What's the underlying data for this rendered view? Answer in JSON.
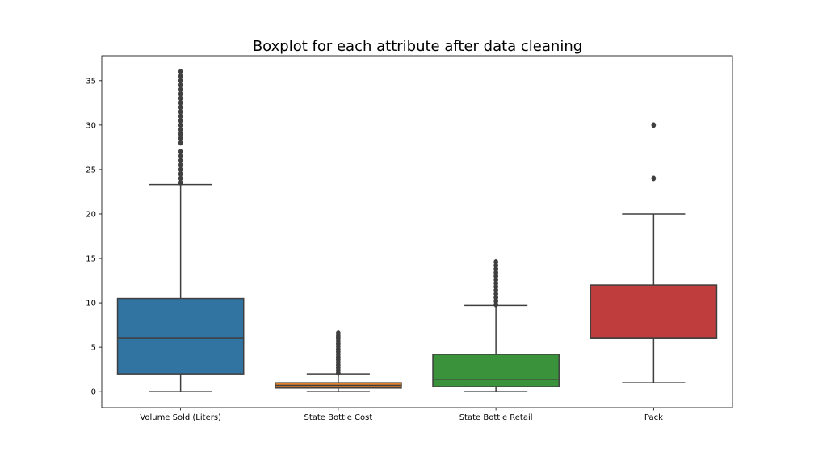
{
  "chart_data": {
    "type": "box",
    "title": "Boxplot for each attribute after data cleaning",
    "xlabel": "",
    "ylabel": "",
    "ylim": [
      -1.8,
      37.8
    ],
    "yticks": [
      0,
      5,
      10,
      15,
      20,
      25,
      30,
      35
    ],
    "grid": false,
    "categories": [
      "Volume Sold (Liters)",
      "State Bottle Cost",
      "State Bottle Retail",
      "Pack"
    ],
    "colors": [
      "#3274a1",
      "#e1812c",
      "#3a923a",
      "#c03d3e"
    ],
    "boxes": [
      {
        "category": "Volume Sold (Liters)",
        "whisker_low": 0,
        "q1": 2.0,
        "median": 6.0,
        "q3": 10.5,
        "whisker_high": 23.3,
        "outliers": [
          23.5,
          24.0,
          24.5,
          25.0,
          25.5,
          26.0,
          26.5,
          27.0,
          28.0,
          28.5,
          29.0,
          29.5,
          30.0,
          30.5,
          31.0,
          31.5,
          32.0,
          32.5,
          33.0,
          33.5,
          34.0,
          34.5,
          35.0,
          35.5,
          36.0
        ]
      },
      {
        "category": "State Bottle Cost",
        "whisker_low": 0,
        "q1": 0.4,
        "median": 0.7,
        "q3": 1.0,
        "whisker_high": 2.0,
        "outliers": [
          2.1,
          2.4,
          2.7,
          3.0,
          3.3,
          3.6,
          3.9,
          4.2,
          4.5,
          4.8,
          5.1,
          5.4,
          5.7,
          6.0,
          6.3,
          6.6
        ]
      },
      {
        "category": "State Bottle Retail",
        "whisker_low": 0,
        "q1": 0.55,
        "median": 1.4,
        "q3": 4.2,
        "whisker_high": 9.7,
        "outliers": [
          9.8,
          10.2,
          10.6,
          11.0,
          11.4,
          11.8,
          12.2,
          12.6,
          13.0,
          13.4,
          13.8,
          14.2,
          14.6
        ]
      },
      {
        "category": "Pack",
        "whisker_low": 1,
        "q1": 6,
        "median": 6,
        "q3": 12,
        "whisker_high": 20,
        "outliers": [
          24,
          30
        ]
      }
    ]
  }
}
